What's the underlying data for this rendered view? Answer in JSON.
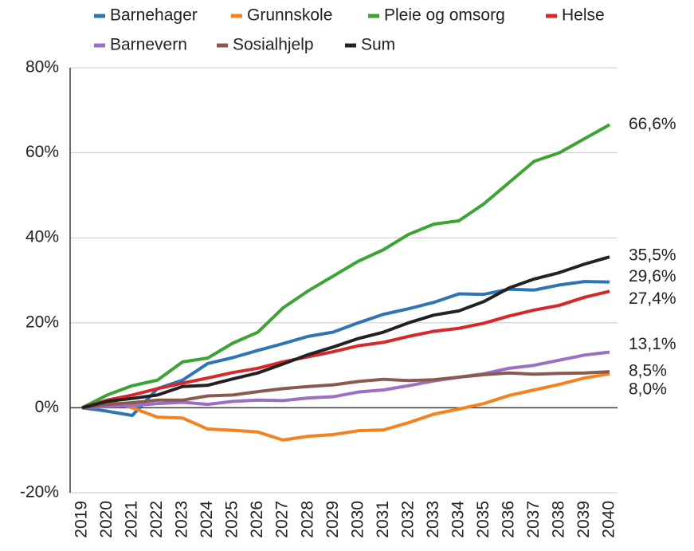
{
  "chart_data": {
    "type": "line",
    "categories": [
      "2019",
      "2020",
      "2021",
      "2022",
      "2023",
      "2024",
      "2025",
      "2026",
      "2027",
      "2028",
      "2029",
      "2030",
      "2031",
      "2032",
      "2033",
      "2034",
      "2035",
      "2036",
      "2037",
      "2038",
      "2039",
      "2040"
    ],
    "ylim": [
      -20,
      80
    ],
    "yticks": [
      {
        "value": -20,
        "label": "-20%"
      },
      {
        "value": 0,
        "label": "0%"
      },
      {
        "value": 20,
        "label": "20%"
      },
      {
        "value": 40,
        "label": "40%"
      },
      {
        "value": 60,
        "label": "60%"
      },
      {
        "value": 80,
        "label": "80%"
      }
    ],
    "grid": true,
    "legend": "top",
    "series": [
      {
        "name": "Barnehager",
        "color": "#2e75b6",
        "values": [
          0,
          -0.8,
          -1.8,
          4.5,
          6.5,
          10.4,
          11.8,
          13.5,
          15.1,
          16.8,
          17.8,
          20,
          22,
          23.3,
          24.8,
          26.8,
          26.7,
          27.9,
          27.7,
          28.9,
          29.7,
          29.6
        ],
        "value_labels": [
          null,
          null,
          null,
          null,
          null,
          null,
          null,
          null,
          null,
          null,
          null,
          null,
          null,
          null,
          null,
          null,
          null,
          null,
          null,
          null,
          null,
          "29,6%"
        ]
      },
      {
        "name": "Grunnskole",
        "color": "#f58220",
        "values": [
          0,
          1.5,
          0,
          -2.2,
          -2.4,
          -5,
          -5.3,
          -5.7,
          -7.6,
          -6.7,
          -6.3,
          -5.4,
          -5.2,
          -3.5,
          -1.5,
          -0.3,
          1,
          2.9,
          4.2,
          5.5,
          7,
          8.0
        ],
        "value_labels": [
          null,
          null,
          null,
          null,
          null,
          null,
          null,
          null,
          null,
          null,
          null,
          null,
          null,
          null,
          null,
          null,
          null,
          null,
          null,
          null,
          null,
          "8,0%"
        ]
      },
      {
        "name": "Pleie og omsorg",
        "color": "#3ca335",
        "values": [
          0,
          3,
          5.2,
          6.5,
          10.8,
          11.7,
          15.2,
          17.8,
          23.5,
          27.5,
          31,
          34.5,
          37.2,
          40.8,
          43.2,
          44,
          48,
          53,
          58,
          60,
          63.3,
          66.6
        ],
        "value_labels": [
          null,
          null,
          null,
          null,
          null,
          null,
          null,
          null,
          null,
          null,
          null,
          null,
          null,
          null,
          null,
          null,
          null,
          null,
          null,
          null,
          null,
          "66,6%"
        ]
      },
      {
        "name": "Helse",
        "color": "#d9262a",
        "values": [
          0,
          1.8,
          3,
          4.5,
          5.8,
          7,
          8.3,
          9.3,
          10.8,
          12,
          13.2,
          14.6,
          15.4,
          16.8,
          18,
          18.7,
          19.9,
          21.6,
          23,
          24.1,
          26,
          27.4
        ],
        "value_labels": [
          null,
          null,
          null,
          null,
          null,
          null,
          null,
          null,
          null,
          null,
          null,
          null,
          null,
          null,
          null,
          null,
          null,
          null,
          null,
          null,
          null,
          "27,4%"
        ]
      },
      {
        "name": "Barnevern",
        "color": "#9b6fc6",
        "values": [
          0,
          0.3,
          0.5,
          1,
          1.3,
          0.8,
          1.5,
          1.8,
          1.7,
          2.3,
          2.6,
          3.7,
          4.2,
          5.2,
          6.3,
          7.2,
          8,
          9.3,
          10,
          11.2,
          12.4,
          13.1
        ],
        "value_labels": [
          null,
          null,
          null,
          null,
          null,
          null,
          null,
          null,
          null,
          null,
          null,
          null,
          null,
          null,
          null,
          null,
          null,
          null,
          null,
          null,
          null,
          "13,1%"
        ]
      },
      {
        "name": "Sosialhjelp",
        "color": "#8b5a4e",
        "values": [
          0,
          0.8,
          1.2,
          1.8,
          1.8,
          2.8,
          3,
          3.8,
          4.5,
          5,
          5.4,
          6.2,
          6.7,
          6.4,
          6.6,
          7.2,
          7.8,
          8.2,
          7.9,
          8.1,
          8.2,
          8.5
        ],
        "value_labels": [
          null,
          null,
          null,
          null,
          null,
          null,
          null,
          null,
          null,
          null,
          null,
          null,
          null,
          null,
          null,
          null,
          null,
          null,
          null,
          null,
          null,
          "8,5%"
        ]
      },
      {
        "name": "Sum",
        "color": "#222222",
        "values": [
          0,
          1.5,
          2.2,
          3,
          5,
          5.3,
          6.8,
          8.2,
          10.3,
          12.5,
          14.3,
          16.3,
          17.8,
          20,
          21.8,
          22.8,
          25,
          28.2,
          30.3,
          31.8,
          33.8,
          35.5
        ],
        "value_labels": [
          null,
          null,
          null,
          null,
          null,
          null,
          null,
          null,
          null,
          null,
          null,
          null,
          null,
          null,
          null,
          null,
          null,
          null,
          null,
          null,
          null,
          "35,5%"
        ]
      }
    ]
  }
}
